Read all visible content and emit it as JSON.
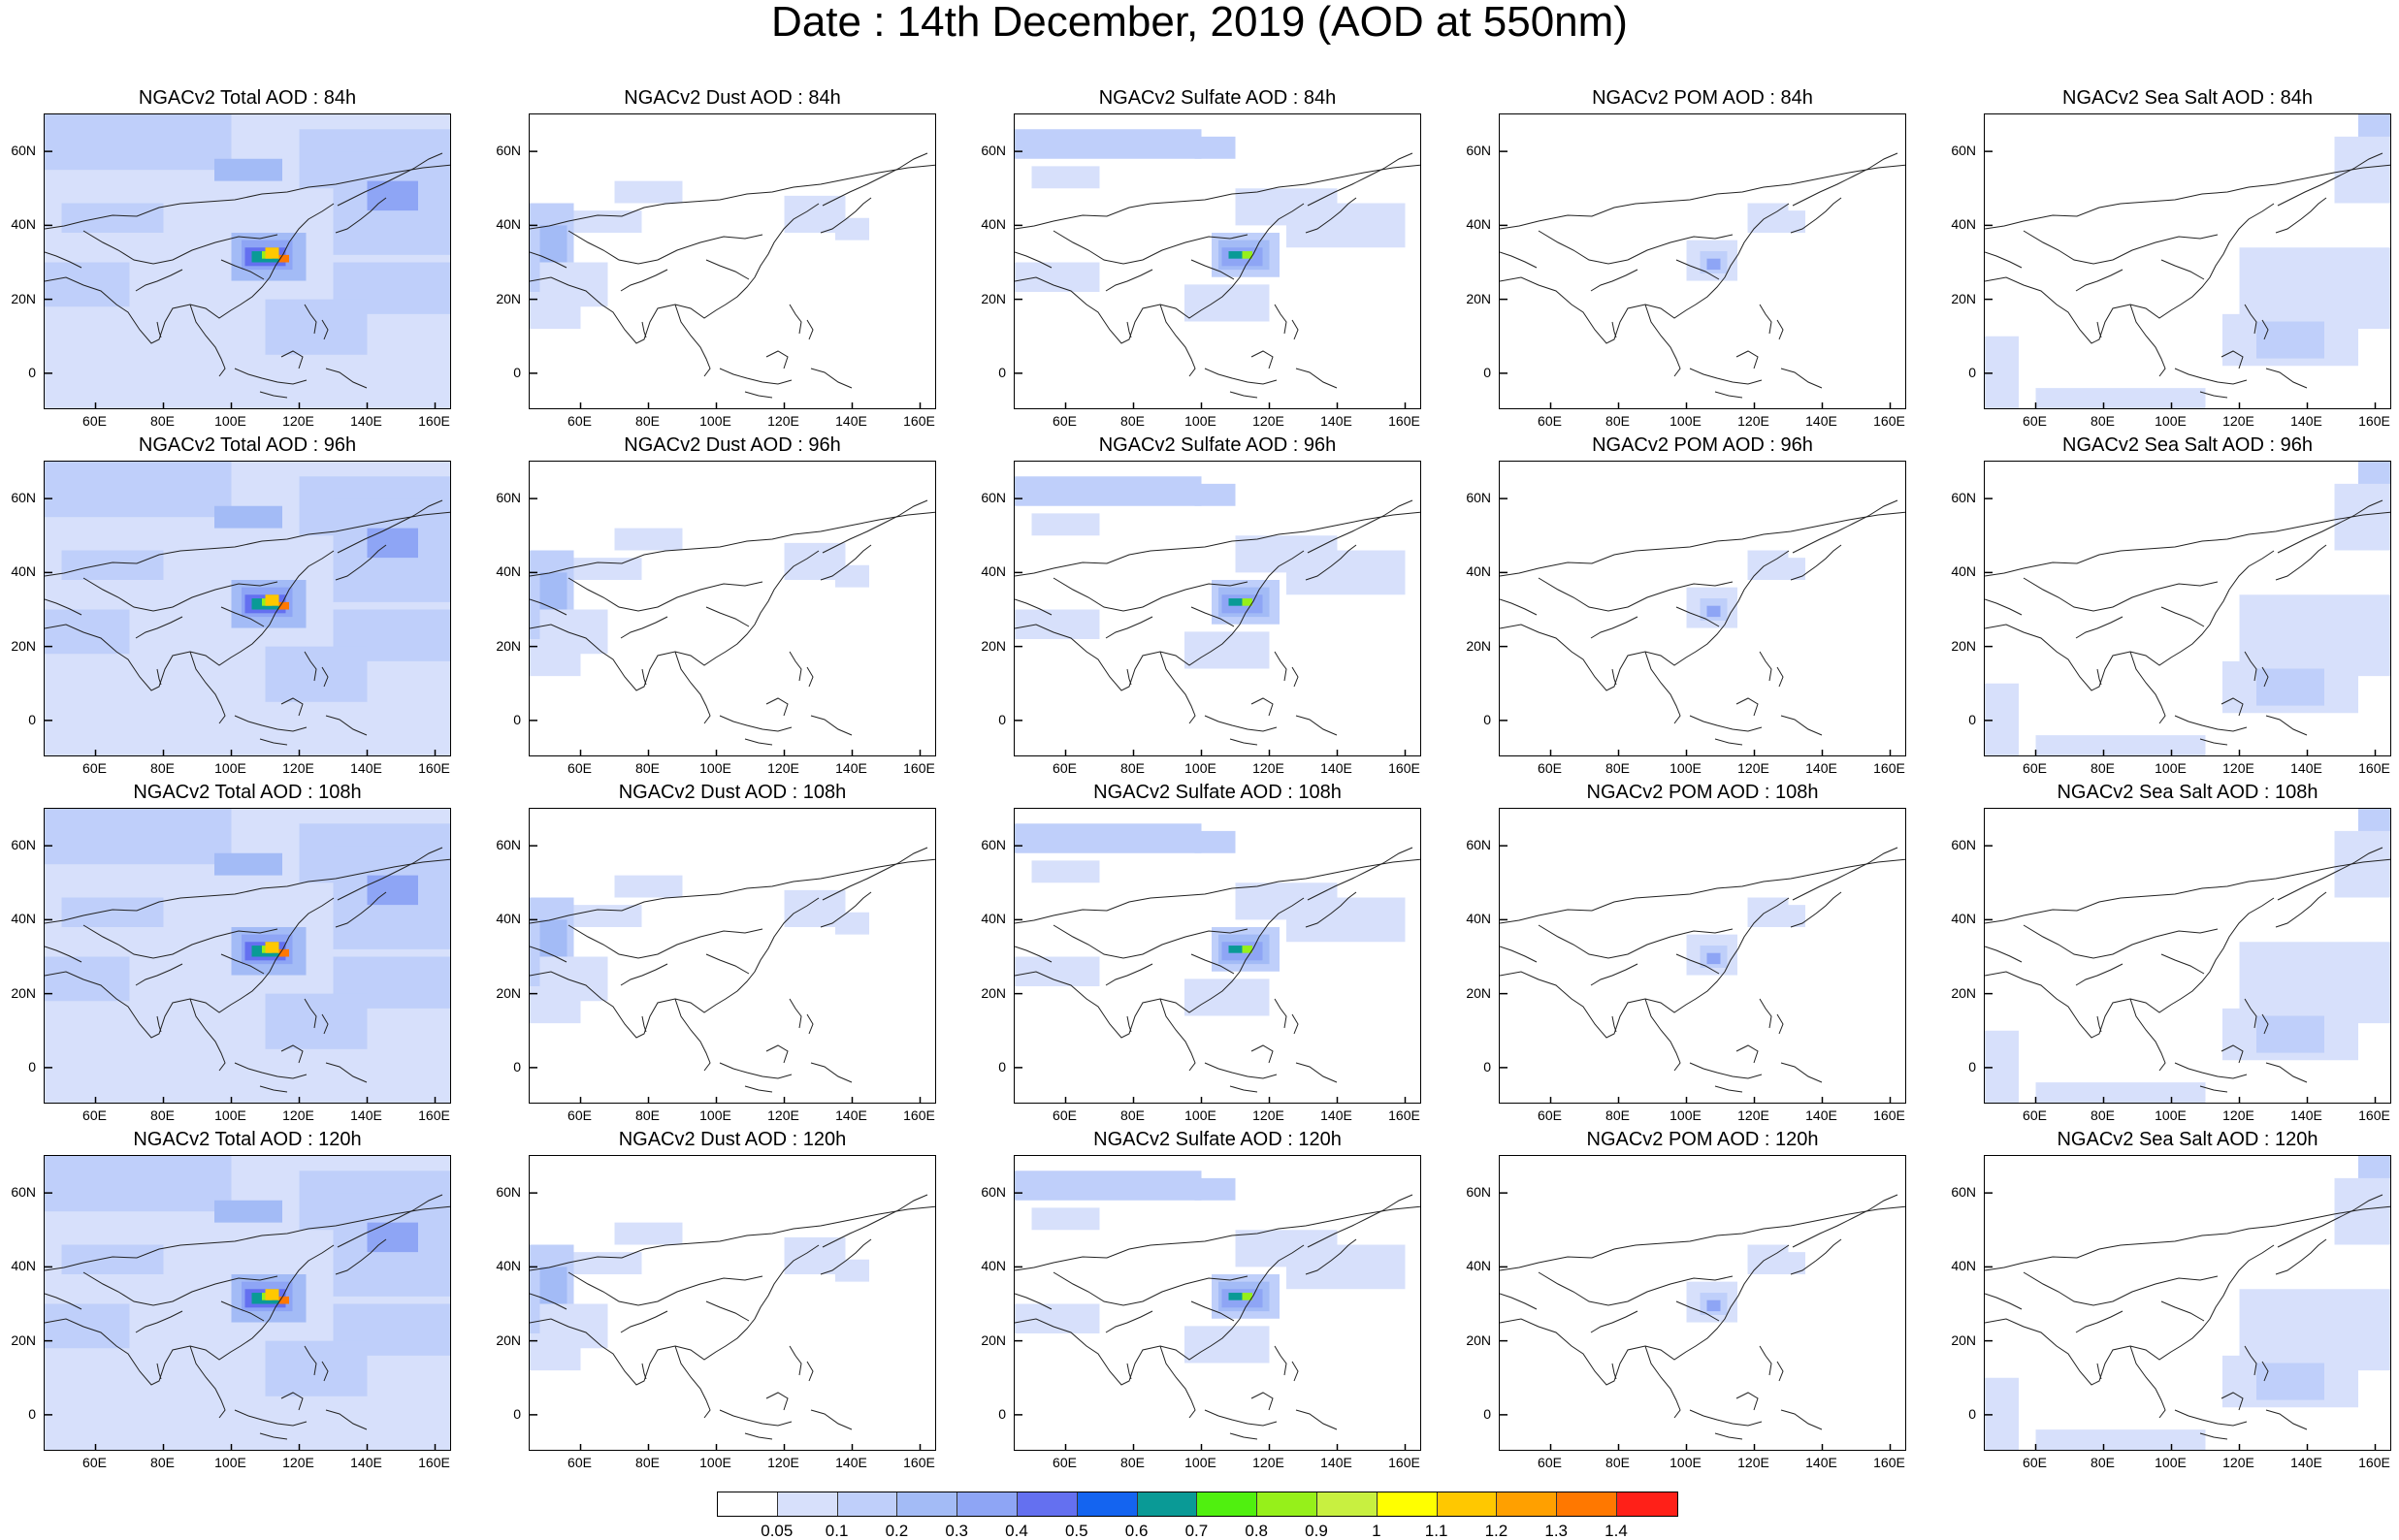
{
  "title": "Date : 14th December, 2019 (AOD at 550nm)",
  "panels": [
    {
      "title": "NGACv2 Total AOD : 84h",
      "species": "total"
    },
    {
      "title": "NGACv2 Dust AOD : 84h",
      "species": "dust"
    },
    {
      "title": "NGACv2 Sulfate AOD : 84h",
      "species": "sulfate"
    },
    {
      "title": "NGACv2 POM AOD : 84h",
      "species": "pom"
    },
    {
      "title": "NGACv2 Sea Salt AOD : 84h",
      "species": "seasalt"
    },
    {
      "title": "NGACv2 Total AOD : 96h",
      "species": "total"
    },
    {
      "title": "NGACv2 Dust AOD : 96h",
      "species": "dust"
    },
    {
      "title": "NGACv2 Sulfate AOD : 96h",
      "species": "sulfate"
    },
    {
      "title": "NGACv2 POM AOD : 96h",
      "species": "pom"
    },
    {
      "title": "NGACv2 Sea Salt AOD : 96h",
      "species": "seasalt"
    },
    {
      "title": "NGACv2 Total AOD : 108h",
      "species": "total"
    },
    {
      "title": "NGACv2 Dust AOD : 108h",
      "species": "dust"
    },
    {
      "title": "NGACv2 Sulfate AOD : 108h",
      "species": "sulfate"
    },
    {
      "title": "NGACv2 POM AOD : 108h",
      "species": "pom"
    },
    {
      "title": "NGACv2 Sea Salt AOD : 108h",
      "species": "seasalt"
    },
    {
      "title": "NGACv2 Total AOD : 120h",
      "species": "total"
    },
    {
      "title": "NGACv2 Dust AOD : 120h",
      "species": "dust"
    },
    {
      "title": "NGACv2 Sulfate AOD : 120h",
      "species": "sulfate"
    },
    {
      "title": "NGACv2 POM AOD : 120h",
      "species": "pom"
    },
    {
      "title": "NGACv2 Sea Salt  AOD : 120h",
      "species": "seasalt"
    }
  ],
  "axes": {
    "x_ticks": [
      "60E",
      "80E",
      "100E",
      "120E",
      "140E",
      "160E"
    ],
    "y_ticks": [
      "60N",
      "40N",
      "20N",
      "0"
    ]
  },
  "colorbar": {
    "colors": [
      "#ffffff",
      "#d7e0fb",
      "#bfcffa",
      "#a3bbf6",
      "#8ea5f5",
      "#6470f0",
      "#1464f0",
      "#0a9a96",
      "#50f00f",
      "#96f01a",
      "#c8f040",
      "#ffff00",
      "#ffc800",
      "#ffa000",
      "#ff7800",
      "#ff2018"
    ],
    "labels": [
      "0.05",
      "0.1",
      "0.2",
      "0.3",
      "0.4",
      "0.5",
      "0.6",
      "0.7",
      "0.8",
      "0.9",
      "1",
      "1.1",
      "1.2",
      "1.3",
      "1.4"
    ]
  }
}
